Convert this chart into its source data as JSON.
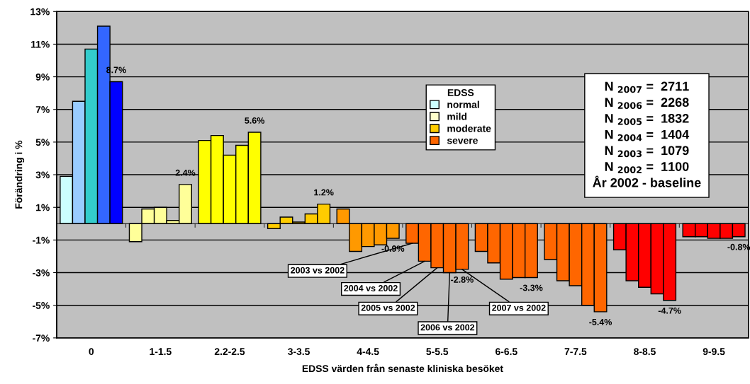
{
  "chart_data": {
    "type": "bar",
    "xlabel": "EDSS värden från senaste kliniska besöket",
    "ylabel": "Förändring i %",
    "categories": [
      "0",
      "1-1.5",
      "2.2-2.5",
      "3-3.5",
      "4-4.5",
      "5-5.5",
      "6-6.5",
      "7-7.5",
      "8-8.5",
      "9-9.5"
    ],
    "series": [
      {
        "name": "2003 vs 2002",
        "values": [
          2.9,
          -1.1,
          5.1,
          -0.3,
          0.9,
          -1.2,
          -1.7,
          -2.2,
          -1.6,
          -0.8
        ],
        "colors": [
          "#ccffff",
          "#ffff99",
          "#ffff00",
          "#ffcc00",
          "#ff9900",
          "#ff6600",
          "#ff6600",
          "#ff6600",
          "#ff0000",
          "#ff0000"
        ]
      },
      {
        "name": "2004 vs 2002",
        "values": [
          7.5,
          0.9,
          5.4,
          0.4,
          -1.7,
          -2.3,
          -2.4,
          -3.5,
          -3.5,
          -0.8
        ],
        "colors": [
          "#99ccff",
          "#ffff99",
          "#ffff00",
          "#ffcc00",
          "#ff9900",
          "#ff6600",
          "#ff6600",
          "#ff6600",
          "#ff0000",
          "#ff0000"
        ]
      },
      {
        "name": "2005 vs 2002",
        "values": [
          10.7,
          1.0,
          4.2,
          0.1,
          -1.4,
          -2.7,
          -3.4,
          -3.8,
          -3.9,
          -0.9
        ],
        "colors": [
          "#33cccc",
          "#ffff99",
          "#ffff00",
          "#ffcc00",
          "#ff9900",
          "#ff6600",
          "#ff6600",
          "#ff6600",
          "#ff0000",
          "#ff0000"
        ]
      },
      {
        "name": "2006 vs 2002",
        "values": [
          12.1,
          0.2,
          4.8,
          0.6,
          -1.3,
          -3.0,
          -3.3,
          -5.0,
          -4.3,
          -0.9
        ],
        "colors": [
          "#3366ff",
          "#ffff99",
          "#ffff00",
          "#ffcc00",
          "#ff9900",
          "#ff6600",
          "#ff6600",
          "#ff6600",
          "#ff0000",
          "#ff0000"
        ]
      },
      {
        "name": "2007 vs 2002",
        "values": [
          8.7,
          2.4,
          5.6,
          1.2,
          -0.9,
          -2.8,
          -3.3,
          -5.4,
          -4.7,
          -0.8
        ],
        "colors": [
          "#0000ff",
          "#ffff99",
          "#ffff00",
          "#ffcc00",
          "#ff9900",
          "#ff6600",
          "#ff6600",
          "#ff6600",
          "#ff0000",
          "#ff0000"
        ],
        "value_labels": [
          "8.7%",
          "2.4%",
          "5.6%",
          "1.2%",
          "-0.9%",
          "-2.8%",
          "-3.3%",
          "-5.4%",
          "-4.7%",
          "-0.8%"
        ]
      },
      {
        "name": "normal",
        "color": "#ccffff",
        "values": [
          null,
          null,
          null,
          null,
          null,
          null,
          null,
          null,
          null,
          null
        ]
      },
      {
        "name": "mild",
        "color": "#ffffcc",
        "values": [
          null,
          null,
          null,
          null,
          null,
          null,
          null,
          null,
          null,
          null
        ]
      },
      {
        "name": "moderate",
        "color": "#ffcc00",
        "values": [
          null,
          null,
          null,
          null,
          null,
          null,
          null,
          null,
          null,
          null
        ]
      },
      {
        "name": "severe",
        "color": "#ff6600",
        "values": [
          null,
          null,
          null,
          null,
          null,
          null,
          null,
          null,
          null,
          null
        ]
      }
    ],
    "ylim": [
      -7,
      13
    ],
    "yticks": [
      {
        "value": -7,
        "label": "-7%"
      },
      {
        "value": -5,
        "label": "-5%"
      },
      {
        "value": -3,
        "label": "-3%"
      },
      {
        "value": -1,
        "label": "-1%"
      },
      {
        "value": 1,
        "label": "1%"
      },
      {
        "value": 3,
        "label": "3%"
      },
      {
        "value": 5,
        "label": "5%"
      },
      {
        "value": 7,
        "label": "7%"
      },
      {
        "value": 9,
        "label": "9%"
      },
      {
        "value": 11,
        "label": "11%"
      },
      {
        "value": 13,
        "label": "13%"
      }
    ],
    "grid": "y",
    "legend": "top",
    "legend_title": "EDSS",
    "annotations": [
      "N $_{2007}$ =  2711",
      "N $_{2006}$ =  2268",
      "N $_{2005}$ =  1832",
      "N $_{2004}$ =  1404",
      "N $_{2003}$ =  1079",
      "N $_{2002}$ =  1100",
      "År 2002 - baseline"
    ]
  }
}
